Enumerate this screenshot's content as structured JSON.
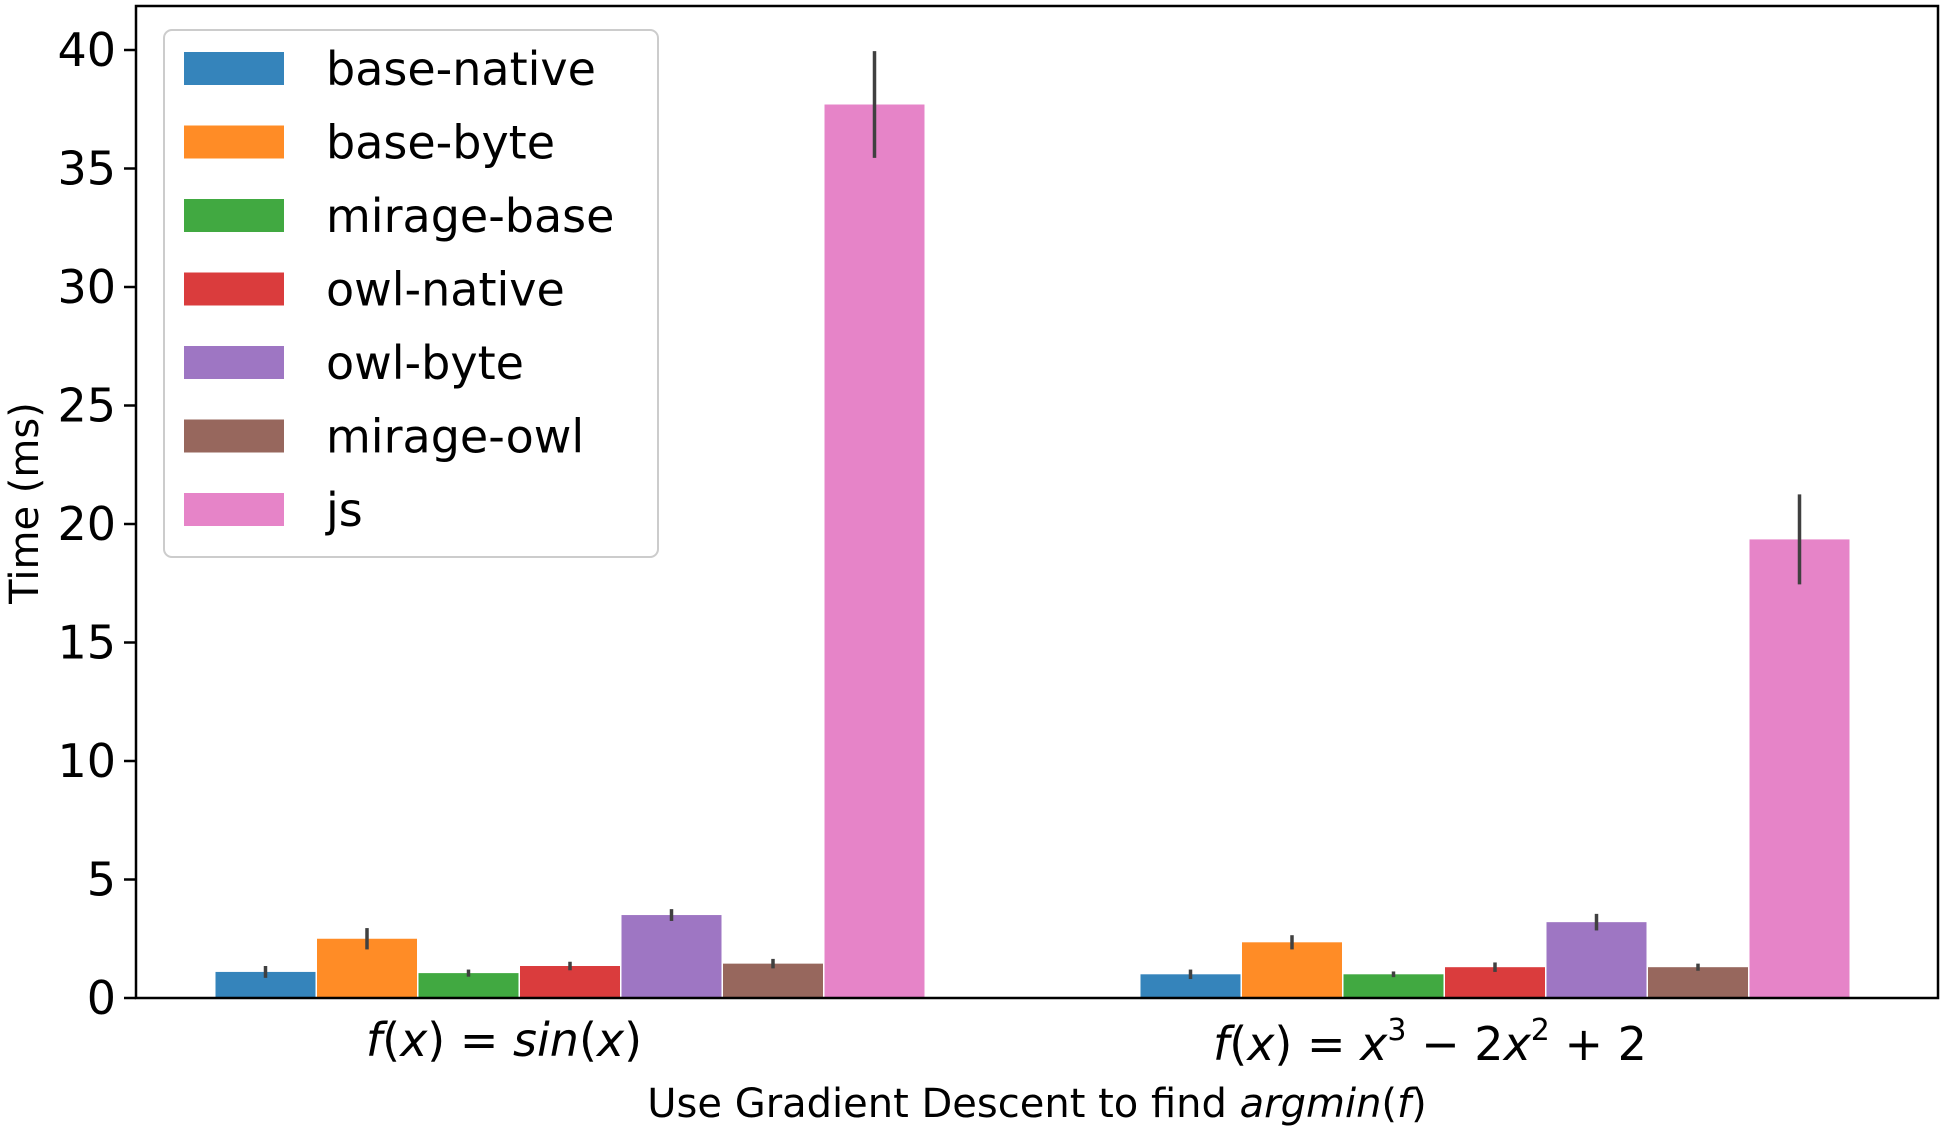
{
  "chart_data": {
    "type": "bar",
    "title": "",
    "xlabel": "Use Gradient Descent to find argmin(f)",
    "xlabel_parts": {
      "prefix": "Use Gradient Descent to find ",
      "fn": "argmin",
      "open": "(",
      "arg": "f",
      "close": ")"
    },
    "ylabel": "Time (ms)",
    "ylim": [
      0,
      42
    ],
    "yticks": [
      0,
      5,
      10,
      15,
      20,
      25,
      30,
      35,
      40
    ],
    "grid": false,
    "legend_position": "top-left",
    "categories": [
      "f(x) = sin(x)",
      "f(x) = x^3 − 2x^2 + 2"
    ],
    "category_labels": [
      {
        "f": "f",
        "lp1": "(",
        "x1": "x",
        "rp1": ")",
        "eq": " = ",
        "fn": "sin",
        "lp2": "(",
        "x2": "x",
        "rp2": ")"
      },
      {
        "f": "f",
        "lp1": "(",
        "x1": "x",
        "rp1": ")",
        "eq": " = ",
        "x2": "x",
        "exp1": "3",
        "minus": " − 2",
        "x3": "x",
        "exp2": "2",
        "plus": " + 2"
      }
    ],
    "series": [
      {
        "name": "base-native",
        "color": "#1f77b4",
        "values": [
          1.1,
          1.0
        ],
        "errors": [
          0.25,
          0.2
        ]
      },
      {
        "name": "base-byte",
        "color": "#ff7f0e",
        "values": [
          2.5,
          2.35
        ],
        "errors": [
          0.45,
          0.3
        ]
      },
      {
        "name": "mirage-base",
        "color": "#2ca02c",
        "values": [
          1.05,
          1.0
        ],
        "errors": [
          0.15,
          0.12
        ]
      },
      {
        "name": "owl-native",
        "color": "#d62728",
        "values": [
          1.35,
          1.3
        ],
        "errors": [
          0.18,
          0.2
        ]
      },
      {
        "name": "owl-byte",
        "color": "#9467bd",
        "values": [
          3.5,
          3.2
        ],
        "errors": [
          0.25,
          0.35
        ]
      },
      {
        "name": "mirage-owl",
        "color": "#8c564b",
        "values": [
          1.45,
          1.3
        ],
        "errors": [
          0.2,
          0.15
        ]
      },
      {
        "name": "js",
        "color": "#e377c2",
        "values": [
          37.7,
          19.35
        ],
        "errors": [
          2.25,
          1.9
        ]
      }
    ],
    "bar_alpha": 0.9,
    "error_color": "#404040"
  }
}
